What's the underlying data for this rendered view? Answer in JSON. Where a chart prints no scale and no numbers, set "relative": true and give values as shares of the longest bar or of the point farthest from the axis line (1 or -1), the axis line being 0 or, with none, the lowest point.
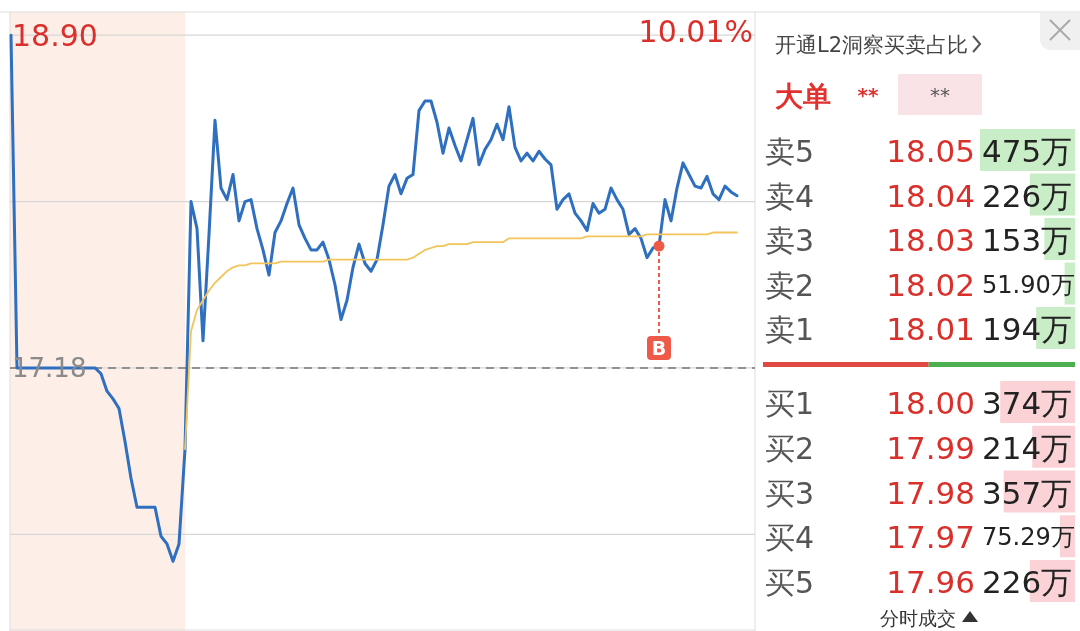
{
  "chart_data": [
    {
      "type": "line",
      "categories": [
        null,
        null,
        null,
        null,
        null,
        null,
        null,
        null,
        null,
        null,
        null,
        null,
        null,
        null,
        null,
        null,
        null,
        null,
        null,
        null,
        null,
        null,
        null,
        null,
        null,
        null,
        null,
        null,
        null,
        null,
        null,
        null,
        null,
        null,
        null,
        null,
        null,
        null,
        null,
        null,
        null,
        null,
        null,
        null,
        null,
        null,
        null,
        null,
        null,
        null,
        null,
        null,
        null,
        null,
        null,
        null,
        null,
        null,
        null,
        null,
        null,
        null,
        null,
        null,
        null,
        null,
        null,
        null,
        null,
        null,
        null,
        null,
        null,
        null,
        null,
        null,
        null,
        null,
        null,
        null,
        null,
        null,
        null,
        null,
        null,
        null,
        null,
        null,
        null,
        null,
        null,
        null,
        null,
        null,
        null,
        null,
        null,
        null,
        null,
        null,
        null,
        null,
        null,
        null,
        null,
        null,
        null,
        null,
        null,
        null,
        null,
        null,
        null,
        null,
        null,
        null,
        null,
        null,
        null,
        null,
        null,
        null
      ],
      "series": [
        {
          "color": "#2f6fbf",
          "values": [
            18.9,
            17.18,
            17.18,
            17.18,
            17.18,
            17.18,
            17.18,
            17.18,
            17.18,
            17.18,
            17.18,
            17.18,
            17.18,
            17.18,
            17.18,
            17.15,
            17.06,
            17.02,
            16.97,
            16.8,
            16.61,
            16.46,
            16.46,
            16.46,
            16.46,
            16.31,
            16.27,
            16.18,
            16.27,
            16.76,
            18.04,
            17.9,
            17.32,
            17.87,
            18.46,
            18.11,
            18.05,
            18.18,
            17.94,
            18.04,
            18.05,
            17.9,
            17.79,
            17.66,
            17.88,
            17.94,
            18.03,
            18.11,
            17.92,
            17.85,
            17.79,
            17.79,
            17.83,
            17.74,
            17.61,
            17.43,
            17.53,
            17.7,
            17.82,
            17.72,
            17.68,
            17.74,
            17.92,
            18.12,
            18.18,
            18.08,
            18.16,
            18.18,
            18.51,
            18.56,
            18.56,
            18.45,
            18.29,
            18.42,
            18.33,
            18.25,
            18.36,
            18.47,
            18.23,
            18.31,
            18.36,
            18.44,
            18.36,
            18.53,
            18.32,
            18.25,
            18.29,
            18.25,
            18.3,
            18.26,
            18.23,
            18.0,
            18.05,
            18.08,
            17.98,
            17.94,
            17.89,
            18.03,
            17.98,
            18.0,
            18.11,
            18.05,
            18.0,
            17.87,
            17.9,
            17.85,
            17.75,
            17.8,
            17.81,
            18.05,
            17.94,
            18.11,
            18.24,
            18.18,
            18.12,
            18.11,
            18.17,
            18.08,
            18.05,
            18.12,
            18.09,
            18.07
          ]
        },
        {
          "color": "#f2c45a",
          "values": [
            null,
            null,
            null,
            null,
            null,
            null,
            null,
            null,
            null,
            null,
            null,
            null,
            null,
            null,
            null,
            null,
            null,
            null,
            null,
            null,
            null,
            null,
            null,
            null,
            null,
            null,
            null,
            null,
            null,
            16.76,
            17.37,
            17.48,
            17.53,
            17.58,
            17.62,
            17.65,
            17.68,
            17.7,
            17.71,
            17.71,
            17.72,
            17.72,
            17.72,
            17.72,
            17.72,
            17.73,
            17.73,
            17.73,
            17.73,
            17.73,
            17.73,
            17.73,
            17.73,
            17.74,
            17.74,
            17.74,
            17.74,
            17.74,
            17.74,
            17.74,
            17.74,
            17.74,
            17.74,
            17.74,
            17.74,
            17.74,
            17.74,
            17.75,
            17.77,
            17.79,
            17.8,
            17.81,
            17.81,
            17.82,
            17.82,
            17.82,
            17.82,
            17.83,
            17.83,
            17.83,
            17.83,
            17.83,
            17.83,
            17.85,
            17.85,
            17.85,
            17.85,
            17.85,
            17.85,
            17.85,
            17.85,
            17.85,
            17.85,
            17.85,
            17.85,
            17.85,
            17.86,
            17.86,
            17.86,
            17.86,
            17.86,
            17.86,
            17.86,
            17.86,
            17.86,
            17.86,
            17.87,
            17.87,
            17.87,
            17.87,
            17.87,
            17.87,
            17.87,
            17.87,
            17.87,
            17.87,
            17.87,
            17.88,
            17.88,
            17.88,
            17.88,
            17.88
          ]
        },
        {
          "name": "B",
          "type": "scatter",
          "color": "#ef5a48",
          "values": [
            null,
            null,
            null,
            null,
            null,
            null,
            null,
            null,
            null,
            null,
            null,
            null,
            null,
            null,
            null,
            null,
            null,
            null,
            null,
            null,
            null,
            null,
            null,
            null,
            null,
            null,
            null,
            null,
            null,
            null,
            null,
            null,
            null,
            null,
            null,
            null,
            null,
            null,
            null,
            null,
            null,
            null,
            null,
            null,
            null,
            null,
            null,
            null,
            null,
            null,
            null,
            null,
            null,
            null,
            null,
            null,
            null,
            null,
            null,
            null,
            null,
            null,
            null,
            null,
            null,
            null,
            null,
            null,
            null,
            null,
            null,
            null,
            null,
            null,
            null,
            null,
            null,
            null,
            null,
            null,
            null,
            null,
            null,
            null,
            null,
            null,
            null,
            null,
            null,
            null,
            null,
            null,
            null,
            null,
            null,
            null,
            null,
            null,
            null,
            null,
            null,
            null,
            null,
            null,
            null,
            null,
            null,
            null,
            17.81,
            null,
            null,
            null,
            null,
            null,
            null,
            null,
            null,
            null,
            null,
            null,
            null,
            null
          ]
        }
      ],
      "ylim": [
        15.82,
        19.02
      ],
      "yticks": [
        {
          "value": 18.9,
          "label": "18.90"
        },
        {
          "value": 18.04,
          "label": null
        },
        {
          "value": 17.18,
          "label": "17.18"
        },
        {
          "value": 16.32,
          "label": null
        }
      ],
      "annotations": [
        "10.01%"
      ],
      "ref_lines": [
        {
          "axis": "y",
          "value": 17.18,
          "color": "#777777",
          "line_style": "dashed"
        }
      ],
      "grid": "y"
    },
    {
      "type": "bar",
      "orientation": "horizontal",
      "title": "开通L2洞察买卖占比",
      "subtitle": "大单",
      "categories": [
        "卖5",
        "卖4",
        "卖3",
        "卖2",
        "卖1",
        "买1",
        "买2",
        "买3",
        "买4",
        "买5"
      ],
      "values": [
        475,
        226,
        153,
        51.9,
        194,
        374,
        214,
        357,
        75.29,
        226
      ],
      "colors": [
        "#c9edc6",
        "#c9edc6",
        "#c9edc6",
        "#c9edc6",
        "#c9edc6",
        "#fbd3d7",
        "#fbd3d7",
        "#fbd3d7",
        "#fbd3d7",
        "#fbd3d7"
      ],
      "value_labels": [
        "475万",
        "226万",
        "153万",
        "51.90万",
        "194万",
        "374万",
        "214万",
        "357万",
        "75.29万",
        "226万"
      ],
      "annotations": [
        "18.05",
        "18.04",
        "18.03",
        "18.02",
        "18.01",
        "18.00",
        "17.99",
        "17.98",
        "17.97",
        "17.96",
        "**",
        "**",
        "分时成交"
      ]
    },
    {
      "type": "bar",
      "orientation": "horizontal",
      "stacked": true,
      "relative": true,
      "categories": [
        null
      ],
      "series": [
        {
          "color": "#e04a44",
          "values": [
            0.531
          ]
        },
        {
          "color": "#4caf50",
          "values": [
            0.469
          ]
        }
      ]
    }
  ]
}
